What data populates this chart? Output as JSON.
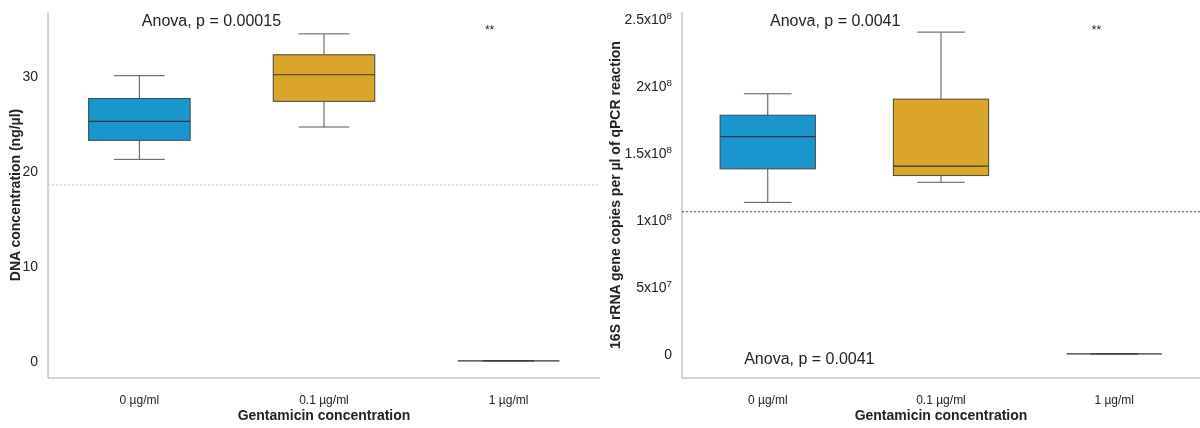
{
  "chart_data": [
    {
      "type": "box",
      "xlabel": "Gentamicin concentration",
      "ylabel": "DNA concentration (ng/µl)",
      "categories": [
        "0 µg/ml",
        "0.1 µg/ml",
        "1 µg/ml"
      ],
      "colors": [
        "#1a96cf",
        "#d9a62a",
        "#333333"
      ],
      "boxes": [
        {
          "low": 21.2,
          "q1": 23.2,
          "median": 25.2,
          "q3": 27.6,
          "high": 30.0
        },
        {
          "low": 24.6,
          "q1": 27.3,
          "median": 30.1,
          "q3": 32.2,
          "high": 34.4
        },
        {
          "low": 0,
          "q1": 0,
          "median": 0,
          "q3": 0,
          "high": 0
        }
      ],
      "ylim": [
        -1.8,
        36.7
      ],
      "yticks": [
        0,
        10,
        20,
        30
      ],
      "grid": false,
      "ref_lines": [
        {
          "axis": "y",
          "value": 18.5,
          "color": "#bbbbbb",
          "line_style": "dotted"
        }
      ],
      "annotations": [
        "Anova, p = 0.00015",
        "**"
      ]
    },
    {
      "type": "box",
      "xlabel": "Gentamicin concentration",
      "ylabel": "16S rRNA gene copies per µl of qPCR reaction",
      "categories": [
        "0 µg/ml",
        "0.1 µg/ml",
        "1 µg/ml"
      ],
      "colors": [
        "#1a96cf",
        "#d9a62a",
        "#333333"
      ],
      "boxes": [
        {
          "low": 113000000,
          "q1": 138000000,
          "median": 162000000,
          "q3": 178000000,
          "high": 194000000
        },
        {
          "low": 128000000,
          "q1": 133000000,
          "median": 140000000,
          "q3": 190000000,
          "high": 240000000
        },
        {
          "low": 0,
          "q1": 0,
          "median": 0,
          "q3": 0,
          "high": 0
        }
      ],
      "ylim": [
        -18000000,
        255000000
      ],
      "yticks": [
        0,
        {
          "value": 50000000,
          "label": "5x10$^{7}$"
        },
        {
          "value": 100000000,
          "label": "1x10$^{8}$"
        },
        {
          "value": 150000000,
          "label": "1.5x10$^{8}$"
        },
        {
          "value": 200000000,
          "label": "2x10$^{8}$"
        },
        {
          "value": 250000000,
          "label": "2.5x10$^{8}$"
        }
      ],
      "grid": false,
      "ref_lines": [
        {
          "axis": "y",
          "value": 106000000,
          "color": "#555555",
          "line_style": "dotted"
        }
      ],
      "annotations": [
        "Anova, p = 0.0041",
        "**",
        "Anova, p = 0.0041"
      ]
    }
  ]
}
